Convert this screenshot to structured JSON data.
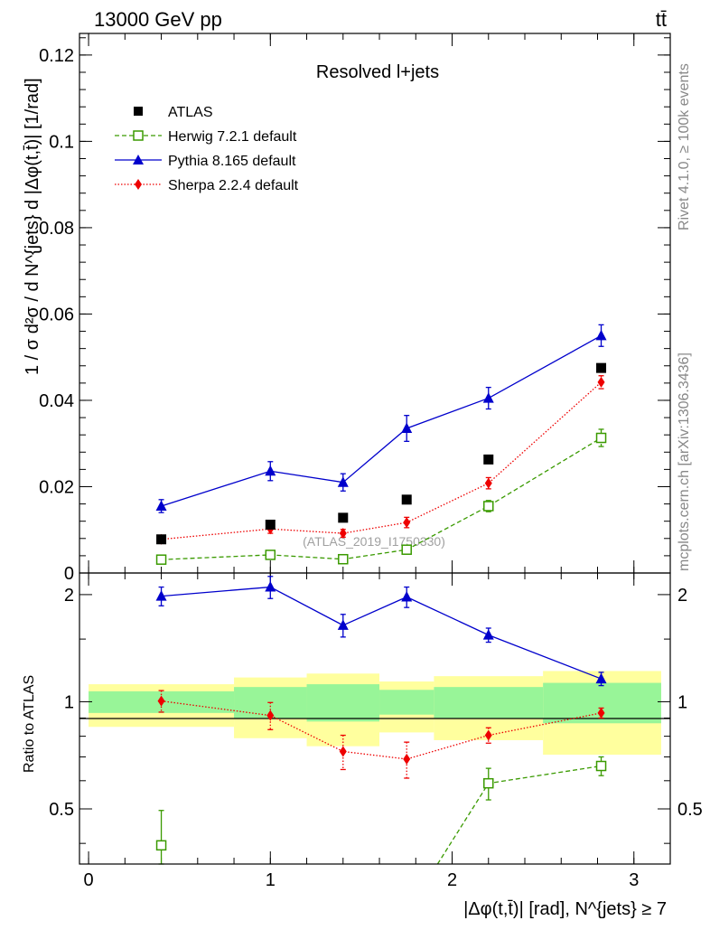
{
  "header": {
    "energy_label": "13000 GeV pp",
    "process_label": "tt̄"
  },
  "side_labels": {
    "rivet": "Rivet 4.1.0, ≥ 100k events",
    "mcplots": "mcplots.cern.ch [arXiv:1306.3436]"
  },
  "colors": {
    "atlas": "#000000",
    "herwig": "#3a9a00",
    "pythia": "#0000cc",
    "sherpa": "#ee0000",
    "band_inner": "#98f598",
    "band_outer": "#ffff9e"
  },
  "chart_data": [
    {
      "type": "scatter",
      "panel": "main",
      "title": "Resolved l+jets",
      "watermark": "(ATLAS_2019_I1750330)",
      "ylabel": "1 / σ d²σ / d N^{jets} d |Δφ(t,t̄)| [1/rad]",
      "xlim": [
        -0.05,
        3.2
      ],
      "ylim": [
        0,
        0.125
      ],
      "y_ticks": [
        0,
        0.02,
        0.04,
        0.06,
        0.08,
        0.1,
        0.12
      ],
      "y_tick_labels": [
        "0",
        "0.02",
        "0.04",
        "0.06",
        "0.08",
        "0.1",
        "0.12"
      ],
      "legend_position": "top-left",
      "series": [
        {
          "name": "ATLAS",
          "key": "atlas",
          "marker": "square-filled",
          "x": [
            0.4,
            1.0,
            1.4,
            1.75,
            2.2,
            2.82
          ],
          "y": [
            0.0078,
            0.0112,
            0.0128,
            0.017,
            0.0263,
            0.0475
          ]
        },
        {
          "name": "Herwig 7.2.1 default",
          "key": "herwig",
          "marker": "square-open",
          "line": "dashed",
          "x": [
            0.4,
            1.0,
            1.4,
            1.75,
            2.2,
            2.82
          ],
          "y": [
            0.0031,
            0.0042,
            0.0032,
            0.0054,
            0.0155,
            0.0313
          ],
          "err": [
            0.0008,
            0.0009,
            0.0008,
            0.001,
            0.0013,
            0.002
          ]
        },
        {
          "name": "Pythia 8.165 default",
          "key": "pythia",
          "marker": "triangle",
          "line": "solid",
          "x": [
            0.4,
            1.0,
            1.4,
            1.75,
            2.2,
            2.82
          ],
          "y": [
            0.0155,
            0.0236,
            0.021,
            0.0335,
            0.0405,
            0.055
          ],
          "err": [
            0.0015,
            0.0022,
            0.002,
            0.003,
            0.0025,
            0.0025
          ]
        },
        {
          "name": "Sherpa 2.2.4 default",
          "key": "sherpa",
          "marker": "diamond",
          "line": "dotted",
          "x": [
            0.4,
            1.0,
            1.4,
            1.75,
            2.2,
            2.82
          ],
          "y": [
            0.0078,
            0.0102,
            0.0092,
            0.0117,
            0.0208,
            0.0442
          ],
          "err": [
            0.0008,
            0.001,
            0.0009,
            0.0012,
            0.0013,
            0.0015
          ]
        }
      ]
    },
    {
      "type": "scatter",
      "panel": "ratio",
      "ylabel": "Ratio to ATLAS",
      "xlabel": "|Δφ(t,t̄)| [rad], N^{jets} ≥ 7",
      "xlim": [
        -0.05,
        3.2
      ],
      "ylim": [
        0.35,
        2.3
      ],
      "x_ticks": [
        0,
        1,
        2,
        3
      ],
      "x_tick_labels": [
        "0",
        "1",
        "2",
        "3"
      ],
      "y_ticks": [
        0.5,
        1,
        2
      ],
      "y_tick_labels": [
        "0.5",
        "1",
        "2"
      ],
      "bands": [
        {
          "x0": 0.0,
          "x1": 0.8,
          "inner": [
            0.93,
            1.07
          ],
          "outer": [
            0.85,
            1.12
          ]
        },
        {
          "x0": 0.8,
          "x1": 1.2,
          "inner": [
            0.9,
            1.1
          ],
          "outer": [
            0.79,
            1.17
          ]
        },
        {
          "x0": 1.2,
          "x1": 1.6,
          "inner": [
            0.88,
            1.12
          ],
          "outer": [
            0.75,
            1.2
          ]
        },
        {
          "x0": 1.6,
          "x1": 1.9,
          "inner": [
            0.92,
            1.08
          ],
          "outer": [
            0.82,
            1.14
          ]
        },
        {
          "x0": 1.9,
          "x1": 2.5,
          "inner": [
            0.9,
            1.1
          ],
          "outer": [
            0.78,
            1.18
          ]
        },
        {
          "x0": 2.5,
          "x1": 3.15,
          "inner": [
            0.87,
            1.13
          ],
          "outer": [
            0.71,
            1.22
          ]
        }
      ],
      "series": [
        {
          "key": "herwig",
          "marker": "square-open",
          "line": "dashed",
          "x": [
            0.4,
            2.2,
            2.82
          ],
          "y": [
            0.395,
            0.59,
            0.66
          ],
          "err": [
            0.1,
            0.06,
            0.04
          ]
        },
        {
          "key": "pythia",
          "marker": "triangle",
          "line": "solid",
          "x": [
            0.4,
            1.0,
            1.4,
            1.75,
            2.2,
            2.82
          ],
          "y": [
            1.98,
            2.1,
            1.64,
            1.97,
            1.54,
            1.16
          ],
          "err": [
            0.12,
            0.15,
            0.12,
            0.13,
            0.07,
            0.05
          ]
        },
        {
          "key": "sherpa",
          "marker": "diamond",
          "line": "dotted",
          "x": [
            0.4,
            1.0,
            1.4,
            1.75,
            2.2,
            2.82
          ],
          "y": [
            1.005,
            0.915,
            0.725,
            0.69,
            0.805,
            0.93
          ],
          "err": [
            0.07,
            0.08,
            0.08,
            0.08,
            0.04,
            0.03
          ]
        }
      ]
    }
  ]
}
